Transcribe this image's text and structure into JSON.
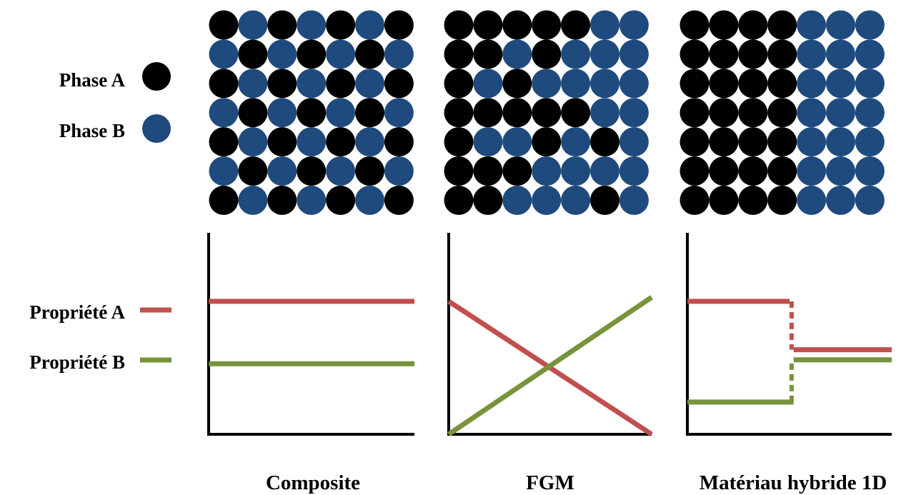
{
  "legend": {
    "phases": [
      {
        "label": "Phase A",
        "color": "#000000"
      },
      {
        "label": "Phase B",
        "color": "#1f4a7e"
      }
    ],
    "properties": [
      {
        "label": "Propriété A",
        "color": "#c0504d"
      },
      {
        "label": "Propriété B",
        "color": "#77933c"
      }
    ]
  },
  "panels": [
    {
      "caption": "Composite",
      "grid": [
        "ABABABA",
        "BABABAB",
        "ABABABA",
        "BABABAB",
        "ABABABA",
        "BABABAB",
        "ABABABA"
      ],
      "profile": {
        "x_range": [
          0,
          1
        ],
        "y_range": [
          0,
          1
        ],
        "property_a": [
          [
            [
              0,
              0.66
            ],
            [
              1,
              0.66
            ]
          ]
        ],
        "property_b": [
          [
            [
              0,
              0.35
            ],
            [
              1,
              0.35
            ]
          ]
        ],
        "connectors": []
      }
    },
    {
      "caption": "FGM",
      "grid": [
        "AAAAABB",
        "AABABBB",
        "ABABBBB",
        "AAAAABB",
        "ABBABAB",
        "AAABBBB",
        "AABBBAB"
      ],
      "profile": {
        "x_range": [
          0,
          1
        ],
        "y_range": [
          0,
          1
        ],
        "property_a": [
          [
            [
              0,
              0.66
            ],
            [
              1,
              0
            ]
          ]
        ],
        "property_b": [
          [
            [
              0,
              0
            ],
            [
              1,
              0.68
            ]
          ]
        ],
        "connectors": []
      }
    },
    {
      "caption": "Matériau hybride 1D",
      "grid": [
        "AAAABBB",
        "AAAABBB",
        "AAAABBB",
        "AAAABBB",
        "AAAABBB",
        "AAAABBB",
        "AAAABBB"
      ],
      "profile": {
        "x_range": [
          0,
          1
        ],
        "y_range": [
          0,
          1
        ],
        "property_a": [
          [
            [
              0,
              0.66
            ],
            [
              0.5,
              0.66
            ]
          ],
          [
            [
              0.52,
              0.42
            ],
            [
              1,
              0.42
            ]
          ]
        ],
        "property_b": [
          [
            [
              0,
              0.16
            ],
            [
              0.52,
              0.16
            ]
          ],
          [
            [
              0.52,
              0.37
            ],
            [
              1,
              0.37
            ]
          ]
        ],
        "connectors": [
          {
            "property": "property_a",
            "x": 0.51,
            "from": 0.66,
            "to": 0.42
          },
          {
            "property": "property_b",
            "x": 0.51,
            "from": 0.16,
            "to": 0.37
          }
        ]
      }
    }
  ]
}
